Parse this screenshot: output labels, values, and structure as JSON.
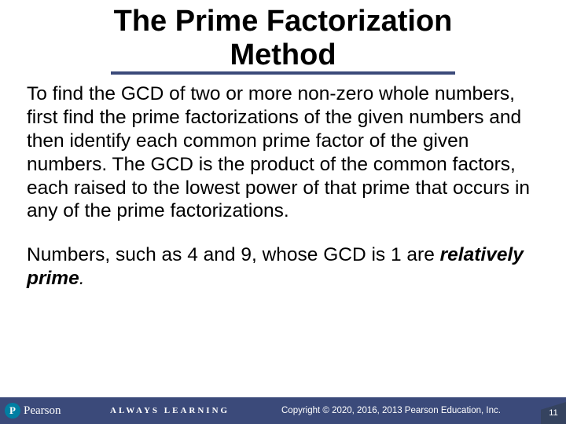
{
  "colors": {
    "rule": "#3b4a7a",
    "footer_bg": "#3b4a7a",
    "pagecap_bg": "#35435f",
    "logo_badge_bg": "#007fa3",
    "text": "#000000",
    "footer_text": "#ffffff"
  },
  "title_line1": "The Prime Factorization",
  "title_line2": "Method",
  "paragraph1": "To find the GCD of two or more non-zero whole numbers, first find the prime factorizations of the given numbers and then identify each common prime factor of the given numbers. The GCD is the product of the common factors, each raised to the lowest power of that prime that occurs in any of the prime factorizations.",
  "paragraph2_a": "Numbers, such as 4 and 9, whose GCD is 1 are ",
  "paragraph2_b": "relatively prime",
  "paragraph2_c": ".",
  "footer": {
    "logo_letter": "P",
    "logo_text": "Pearson",
    "tagline": "ALWAYS LEARNING",
    "copyright": "Copyright © 2020, 2016, 2013 Pearson Education, Inc.",
    "page": "11"
  }
}
